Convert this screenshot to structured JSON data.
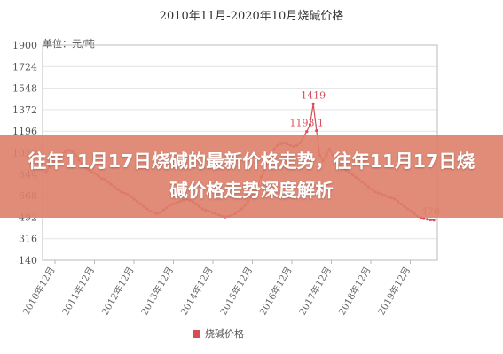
{
  "overlay": {
    "headline": "往年11月17日烧碱的最新价格走势，往年11月17日烧碱价格走势深度解析"
  },
  "chart_data": {
    "type": "line",
    "title": "2010年11月-2020年10月烧碱价格",
    "unit_label": "单位：元/吨",
    "ylim": [
      140,
      1900
    ],
    "yticks": [
      140,
      316,
      492,
      668,
      844,
      1020,
      1196,
      1372,
      1548,
      1724,
      1900
    ],
    "grid": true,
    "x_tick_labels": [
      "2010年12月",
      "2011年12月",
      "2012年12月",
      "2013年12月",
      "2014年12月",
      "2015年12月",
      "2016年12月",
      "2017年12月",
      "2018年12月",
      "2019年12月"
    ],
    "legend": {
      "position": "bottom",
      "label": "烧碱价格"
    },
    "series_color": "#d94b5a",
    "annotations": [
      {
        "x": 82,
        "y": 1419,
        "label": "1419"
      },
      {
        "x": 80,
        "y": 1193.1,
        "label": "1193.1"
      },
      {
        "x": 118,
        "y": 470,
        "label": "470"
      }
    ],
    "series": [
      {
        "name": "烧碱价格",
        "values": [
          860,
          900,
          930,
          960,
          990,
          1010,
          1030,
          1040,
          1030,
          1000,
          960,
          930,
          900,
          880,
          860,
          850,
          830,
          810,
          800,
          780,
          760,
          740,
          720,
          700,
          690,
          680,
          660,
          640,
          620,
          600,
          580,
          560,
          540,
          530,
          520,
          530,
          550,
          570,
          590,
          600,
          610,
          620,
          630,
          640,
          630,
          620,
          600,
          580,
          560,
          550,
          540,
          530,
          520,
          510,
          500,
          495,
          500,
          510,
          520,
          540,
          560,
          590,
          620,
          660,
          700,
          760,
          820,
          880,
          940,
          1000,
          1050,
          1080,
          1090,
          1100,
          1090,
          1080,
          1070,
          1080,
          1100,
          1150,
          1193.1,
          1250,
          1419,
          1200,
          1000,
          950,
          1000,
          1050,
          1000,
          950,
          920,
          900,
          880,
          860,
          840,
          820,
          800,
          780,
          760,
          740,
          720,
          700,
          690,
          680,
          670,
          660,
          650,
          640,
          620,
          600,
          580,
          560,
          540,
          520,
          500,
          490,
          480,
          475,
          470,
          468
        ]
      }
    ]
  }
}
